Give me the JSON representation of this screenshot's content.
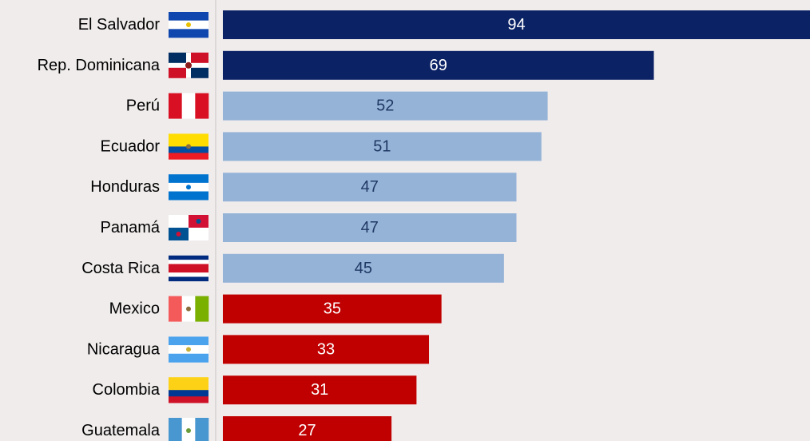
{
  "chart_data": {
    "type": "bar",
    "orientation": "horizontal",
    "categories": [
      "El Salvador",
      "Rep. Dominicana",
      "Perú",
      "Ecuador",
      "Honduras",
      "Panamá",
      "Costa Rica",
      "Mexico",
      "Nicaragua",
      "Colombia",
      "Guatemala"
    ],
    "values": [
      94,
      69,
      52,
      51,
      47,
      47,
      45,
      35,
      33,
      31,
      27
    ],
    "colors": [
      "#0b2265",
      "#0b2265",
      "#95b3d7",
      "#95b3d7",
      "#95b3d7",
      "#95b3d7",
      "#95b3d7",
      "#c00000",
      "#c00000",
      "#c00000",
      "#c00000"
    ],
    "value_label_colors": [
      "#ffffff",
      "#ffffff",
      "#1f3864",
      "#1f3864",
      "#1f3864",
      "#1f3864",
      "#1f3864",
      "#ffffff",
      "#ffffff",
      "#ffffff",
      "#ffffff"
    ],
    "xlim": [
      0,
      94
    ]
  }
}
